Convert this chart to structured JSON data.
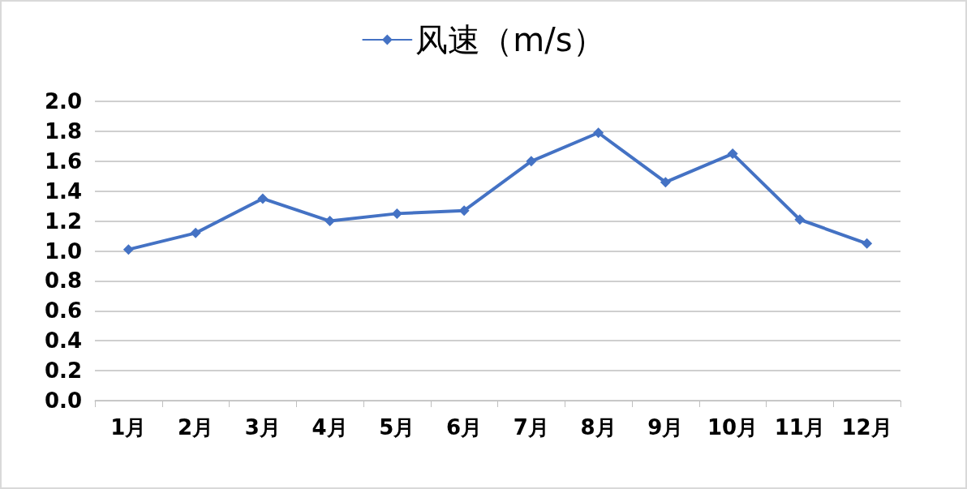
{
  "chart_data": {
    "type": "line",
    "categories": [
      "1月",
      "2月",
      "3月",
      "4月",
      "5月",
      "6月",
      "7月",
      "8月",
      "9月",
      "10月",
      "11月",
      "12月"
    ],
    "series": [
      {
        "name": "风速（m/s）",
        "color": "#4472c4",
        "values": [
          1.01,
          1.12,
          1.35,
          1.2,
          1.25,
          1.27,
          1.6,
          1.79,
          1.46,
          1.65,
          1.21,
          1.05
        ]
      }
    ],
    "ylim": [
      0,
      2
    ],
    "yticks": [
      {
        "value": 0,
        "label": "0.0"
      },
      0.2,
      0.4,
      0.6,
      0.8,
      {
        "value": 1,
        "label": "1.0"
      },
      1.2,
      1.4,
      1.6,
      1.8,
      {
        "value": 2,
        "label": "2.0"
      }
    ],
    "grid": "y",
    "legend": "top",
    "marker": "diamond",
    "line_style": "solid"
  }
}
